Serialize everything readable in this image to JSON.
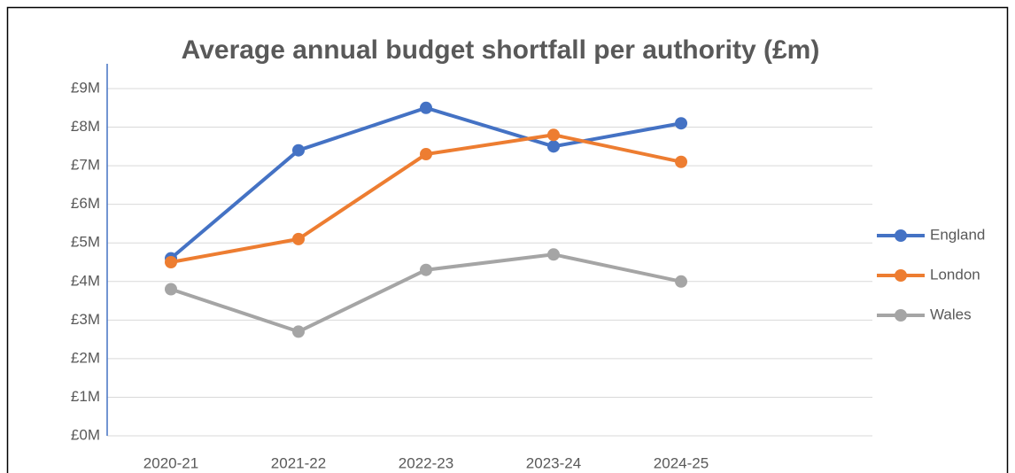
{
  "chart_data": {
    "type": "line",
    "title": "Average annual budget shortfall per authority (£m)",
    "categories": [
      "2020-21",
      "2021-22",
      "2022-23",
      "2023-24",
      "2024-25",
      null
    ],
    "series": [
      {
        "name": "England",
        "color": "#4472c4",
        "values": [
          4.6,
          7.4,
          8.5,
          7.5,
          8.1,
          null
        ]
      },
      {
        "name": "London",
        "color": "#ed7d31",
        "values": [
          4.5,
          5.1,
          7.3,
          7.8,
          7.1,
          null
        ]
      },
      {
        "name": "Wales",
        "color": "#a5a5a5",
        "values": [
          3.8,
          2.7,
          4.3,
          4.7,
          4.0,
          null
        ]
      }
    ],
    "ylim": [
      0,
      9
    ],
    "yticks": [
      {
        "value": 0,
        "label": "£0M"
      },
      {
        "value": 1,
        "label": "£1M"
      },
      {
        "value": 2,
        "label": "£2M"
      },
      {
        "value": 3,
        "label": "£3M"
      },
      {
        "value": 4,
        "label": "£4M"
      },
      {
        "value": 5,
        "label": "£5M"
      },
      {
        "value": 6,
        "label": "£6M"
      },
      {
        "value": 7,
        "label": "£7M"
      },
      {
        "value": 8,
        "label": "£8M"
      },
      {
        "value": 9,
        "label": "£9M"
      }
    ],
    "grid": true,
    "legend": "right"
  }
}
